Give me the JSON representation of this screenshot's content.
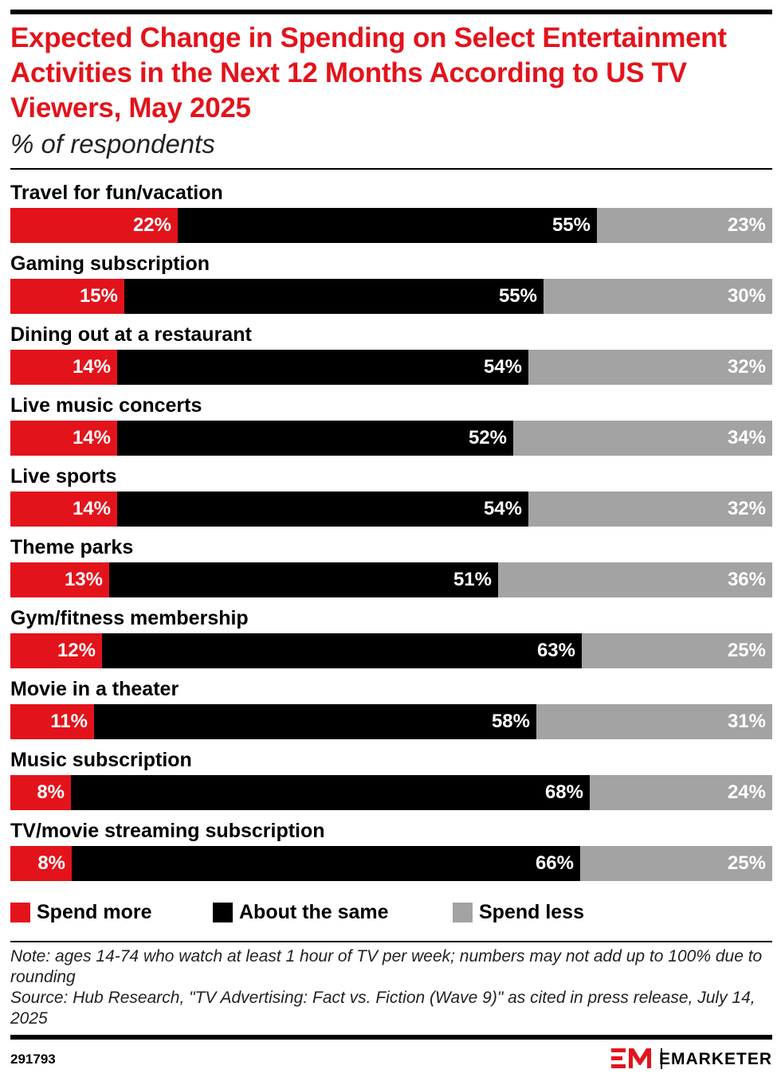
{
  "header": {
    "title": "Expected Change in Spending on Select Entertainment Activities in the Next 12 Months According to US TV Viewers, May 2025",
    "subtitle": "% of respondents"
  },
  "colors": {
    "spend_more": "#e3131b",
    "about_same": "#000000",
    "spend_less": "#a3a3a3",
    "title": "#e3131b"
  },
  "chart_data": {
    "type": "bar",
    "orientation": "horizontal",
    "stacked": true,
    "normalized": true,
    "unit": "%",
    "xlim": [
      0,
      100
    ],
    "grid": false,
    "legend_position": "bottom",
    "categories": [
      "Travel for fun/vacation",
      "Gaming subscription",
      "Dining out at a restaurant",
      "Live music concerts",
      "Live sports",
      "Theme parks",
      "Gym/fitness membership",
      "Movie in a theater",
      "Music subscription",
      "TV/movie streaming subscription"
    ],
    "series": [
      {
        "name": "Spend more",
        "color": "#e3131b",
        "values": [
          22,
          15,
          14,
          14,
          14,
          13,
          12,
          11,
          8,
          8
        ]
      },
      {
        "name": "About the same",
        "color": "#000000",
        "values": [
          55,
          55,
          54,
          52,
          54,
          51,
          63,
          58,
          68,
          66
        ]
      },
      {
        "name": "Spend less",
        "color": "#a3a3a3",
        "values": [
          23,
          30,
          32,
          34,
          32,
          36,
          25,
          31,
          24,
          25
        ]
      }
    ]
  },
  "footer": {
    "note_line1": "Note: ages 14-74 who watch at least 1 hour of TV per week; numbers may not add up to 100% due to rounding",
    "note_line2": "Source: Hub Research, \"TV Advertising: Fact vs. Fiction (Wave 9)\" as cited in press release, July 14, 2025",
    "chart_id": "291793",
    "brand": "EMARKETER"
  }
}
